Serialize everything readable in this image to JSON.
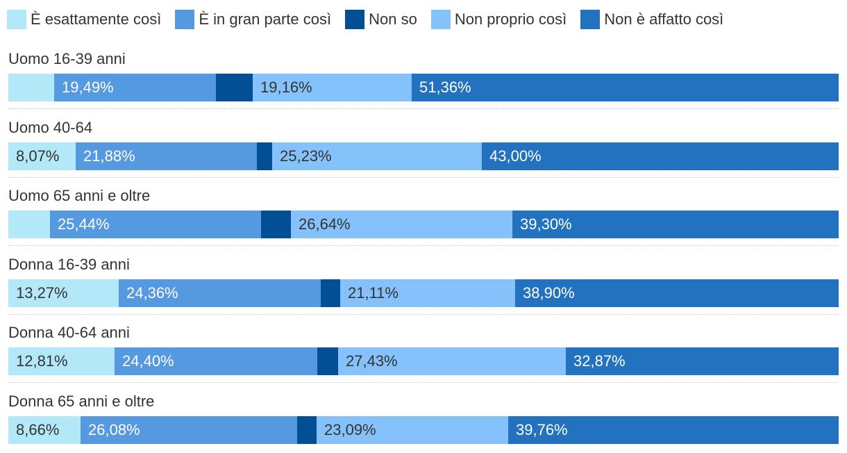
{
  "chart_data": {
    "type": "bar",
    "orientation": "horizontal",
    "stacked": "percent",
    "legend_position": "top-left",
    "categories": [
      "Uomo 16-39 anni",
      "Uomo 40-64",
      "Uomo 65 anni e oltre",
      "Donna 16-39 anni",
      "Donna 40-64 anni",
      "Donna 65 anni e oltre"
    ],
    "series": [
      {
        "name": "È esattamente così",
        "color": "#b3e8f8",
        "values": [
          5.5,
          8.07,
          5.0,
          13.27,
          12.81,
          8.66
        ],
        "labels": [
          "",
          "8,07%",
          "",
          "13,27%",
          "12,81%",
          "8,66%"
        ],
        "label_color": "#333333"
      },
      {
        "name": "È in gran parte così",
        "color": "#5599e0",
        "values": [
          19.49,
          21.88,
          25.44,
          24.36,
          24.4,
          26.08
        ],
        "labels": [
          "19,49%",
          "21,88%",
          "25,44%",
          "24,36%",
          "24,40%",
          "26,08%"
        ],
        "label_color": "#ffffff"
      },
      {
        "name": "Non so",
        "color": "#034f96",
        "values": [
          4.4,
          1.8,
          3.6,
          2.3,
          2.5,
          2.4
        ],
        "labels": [
          "",
          "",
          "",
          "",
          "",
          ""
        ],
        "label_color": "#ffffff"
      },
      {
        "name": "Non proprio così",
        "color": "#85c1fa",
        "values": [
          19.16,
          25.23,
          26.64,
          21.11,
          27.43,
          23.09
        ],
        "labels": [
          "19,16%",
          "25,23%",
          "26,64%",
          "21,11%",
          "27,43%",
          "23,09%"
        ],
        "label_color": "#333333"
      },
      {
        "name": "Non è affatto così",
        "color": "#2272c0",
        "values": [
          51.36,
          43.0,
          39.3,
          38.9,
          32.87,
          39.76
        ],
        "labels": [
          "51,36%",
          "43,00%",
          "39,30%",
          "38,90%",
          "32,87%",
          "39,76%"
        ],
        "label_color": "#ffffff"
      }
    ]
  }
}
